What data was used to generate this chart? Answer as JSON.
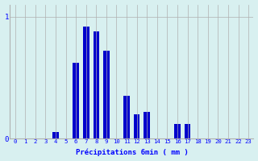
{
  "xlabel": "Précipitations 6min ( mm )",
  "background_color": "#d8f0f0",
  "bar_color": "#0000cc",
  "grid_color": "#b0b0b0",
  "hours": [
    0,
    1,
    2,
    3,
    4,
    5,
    6,
    7,
    8,
    9,
    10,
    11,
    12,
    13,
    14,
    15,
    16,
    17,
    18,
    19,
    20,
    21,
    22,
    23
  ],
  "values": [
    0,
    0,
    0,
    0,
    0.05,
    0,
    0.62,
    0.92,
    0.88,
    0.72,
    0,
    0.35,
    0.2,
    0.22,
    0,
    0,
    0.12,
    0.12,
    0,
    0,
    0,
    0,
    0,
    0
  ],
  "ylim": [
    0,
    1.1
  ],
  "yticks": [
    0,
    1
  ],
  "ytick_labels": [
    "0",
    "1"
  ],
  "xlim": [
    -0.5,
    23.5
  ]
}
